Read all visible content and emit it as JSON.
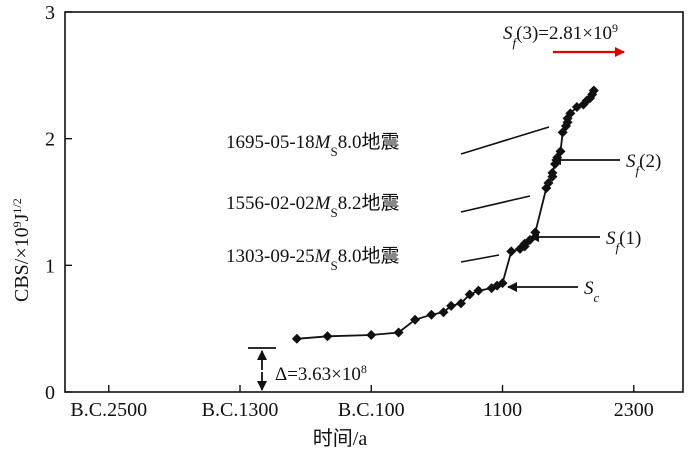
{
  "chart_data": {
    "type": "line",
    "xlabel": "时间/a",
    "ylabel": "CBS/×10⁹J¹ᐟ²",
    "ylabel_parts": {
      "main": "CBS/×10",
      "exp1": "9",
      "unit": "J",
      "exp2": "1/2"
    },
    "xlim": [
      -2900,
      2750
    ],
    "ylim": [
      0,
      3
    ],
    "x_ticks": [
      -2500,
      -1300,
      -100,
      1100,
      2300
    ],
    "x_tick_labels": [
      "B.C.2500",
      "B.C.1300",
      "B.C.100",
      "1100",
      "2300"
    ],
    "y_ticks": [
      0,
      1,
      2,
      3
    ],
    "y_tick_labels": [
      "0",
      "1",
      "2",
      "3"
    ],
    "marker": "diamond",
    "series": [
      {
        "x": [
          -780,
          -500,
          -100,
          150,
          300,
          450,
          560,
          630,
          720,
          800,
          880,
          1000,
          1050,
          1100,
          1180,
          1260,
          1303,
          1303,
          1350,
          1400,
          1500,
          1520,
          1556,
          1556,
          1580,
          1600,
          1630,
          1650,
          1680,
          1695,
          1695,
          1720,
          1780,
          1840,
          1870,
          1900,
          1920,
          1935
        ],
        "y": [
          0.42,
          0.44,
          0.45,
          0.47,
          0.57,
          0.61,
          0.63,
          0.68,
          0.7,
          0.77,
          0.8,
          0.82,
          0.84,
          0.86,
          1.11,
          1.13,
          1.15,
          1.17,
          1.2,
          1.26,
          1.61,
          1.65,
          1.7,
          1.73,
          1.8,
          1.85,
          1.9,
          2.05,
          2.1,
          2.13,
          2.16,
          2.2,
          2.25,
          2.27,
          2.3,
          2.32,
          2.35,
          2.38
        ]
      }
    ],
    "annotations": {
      "eq1": {
        "date": "1695-05-18",
        "ms": "8.0",
        "suffix": "地震"
      },
      "eq2": {
        "date": "1556-02-02",
        "ms": "8.2",
        "suffix": "地震"
      },
      "eq3": {
        "date": "1303-09-25",
        "ms": "8.0",
        "suffix": "地震"
      },
      "ms_label": {
        "m": "M",
        "sub": "S"
      },
      "sf3": {
        "s": "S",
        "sub": "f",
        "text": "(3)=2.81×10",
        "sup": "9",
        "color": "#e00000"
      },
      "sf2": {
        "s": "S",
        "sub": "f",
        "text": "(2)"
      },
      "sf1": {
        "s": "S",
        "sub": "f",
        "text": "(1)"
      },
      "sc": {
        "s": "S",
        "sub": "c"
      },
      "delta": {
        "text": "Δ=3.63×10",
        "sup": "8"
      }
    }
  }
}
